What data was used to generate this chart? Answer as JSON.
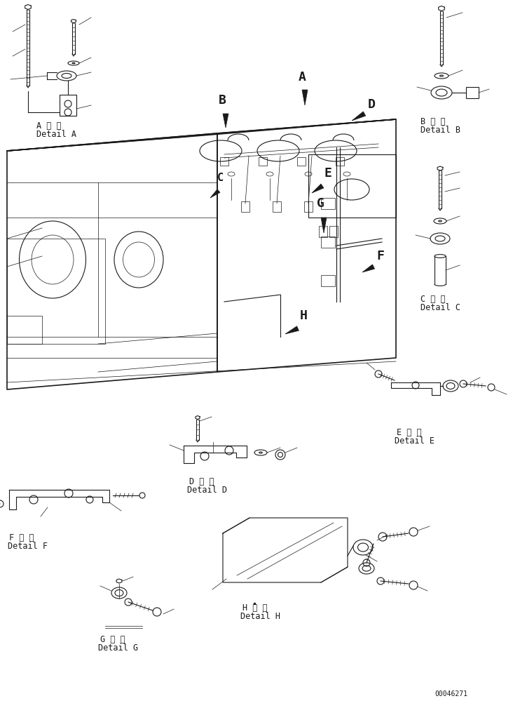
{
  "background_color": "#ffffff",
  "line_color": "#1a1a1a",
  "page_number": "00046271",
  "label_A_jp": "A 詳 細",
  "label_A_en": "Detail A",
  "label_B_jp": "B 詳 細",
  "label_B_en": "Detail B",
  "label_C_jp": "C 詳 細",
  "label_C_en": "Detail C",
  "label_D_jp": "D 詳 細",
  "label_D_en": "Detail D",
  "label_E_jp": "E 詳 細",
  "label_E_en": "Detail E",
  "label_F_jp": "F 詳 細",
  "label_F_en": "Detail F",
  "label_G_jp": "G 詳 細",
  "label_G_en": "Detail G",
  "label_H_jp": "H 詳 細",
  "label_H_en": "Detail H"
}
